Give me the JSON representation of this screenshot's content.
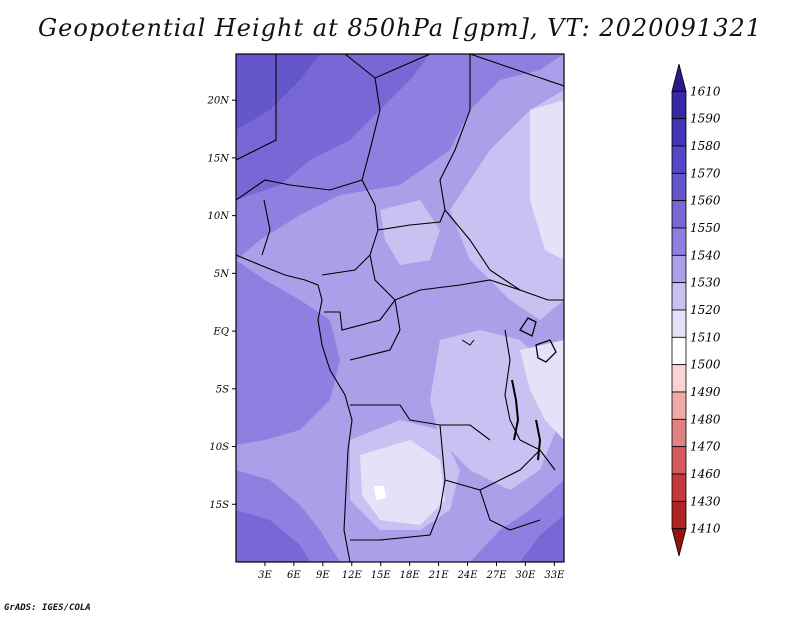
{
  "title": "Geopotential Height at 850hPa [gpm], VT: 2020091321",
  "footer": "GrADS: IGES/COLA",
  "map": {
    "variable": "Geopotential Height",
    "level": "850hPa",
    "units": "gpm",
    "valid_time": "2020091321",
    "lon_range": [
      0,
      34
    ],
    "lat_range": [
      -20,
      24
    ],
    "lat_ticks": [
      {
        "value": 20,
        "label": "20N"
      },
      {
        "value": 15,
        "label": "15N"
      },
      {
        "value": 10,
        "label": "10N"
      },
      {
        "value": 5,
        "label": "5N"
      },
      {
        "value": 0,
        "label": "EQ"
      },
      {
        "value": -5,
        "label": "5S"
      },
      {
        "value": -10,
        "label": "10S"
      },
      {
        "value": -15,
        "label": "15S"
      }
    ],
    "lon_ticks": [
      {
        "value": 3,
        "label": "3E"
      },
      {
        "value": 6,
        "label": "6E"
      },
      {
        "value": 9,
        "label": "9E"
      },
      {
        "value": 12,
        "label": "12E"
      },
      {
        "value": 15,
        "label": "15E"
      },
      {
        "value": 18,
        "label": "18E"
      },
      {
        "value": 21,
        "label": "21E"
      },
      {
        "value": 24,
        "label": "24E"
      },
      {
        "value": 27,
        "label": "27E"
      },
      {
        "value": 30,
        "label": "30E"
      },
      {
        "value": 33,
        "label": "33E"
      }
    ]
  },
  "colorbar": {
    "levels": [
      "1610",
      "1590",
      "1580",
      "1570",
      "1560",
      "1550",
      "1540",
      "1530",
      "1520",
      "1510",
      "1500",
      "1490",
      "1480",
      "1470",
      "1460",
      "1430",
      "1410"
    ],
    "colors": [
      "#2a1a8e",
      "#3828a8",
      "#4434b8",
      "#5446c4",
      "#6656cc",
      "#7868d6",
      "#8e80e0",
      "#aaa0ea",
      "#c8c2f2",
      "#e4e2f8",
      "#ffffff",
      "#f8d4d4",
      "#f0aaaa",
      "#e08282",
      "#d45c5c",
      "#c43a3a",
      "#b02424",
      "#981010"
    ]
  }
}
